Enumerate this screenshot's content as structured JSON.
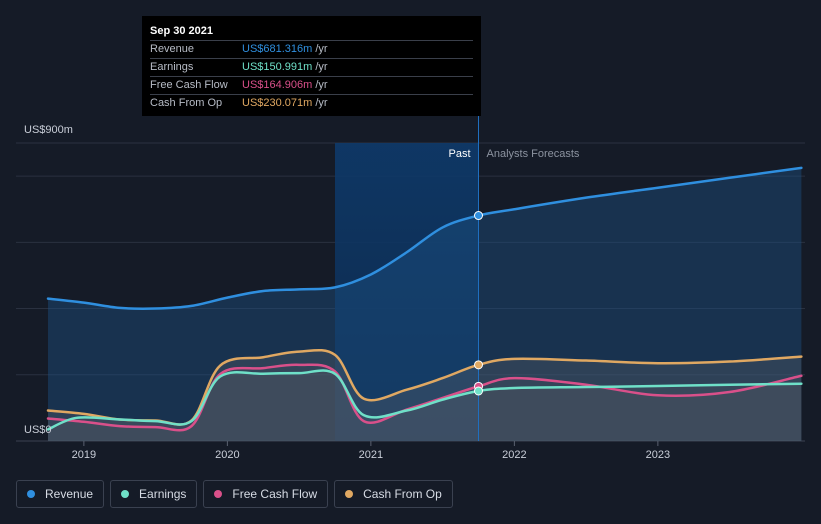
{
  "chart_data": {
    "type": "line",
    "y_axis_labels": [
      "US$900m",
      "US$0"
    ],
    "x_ticks": [
      "2019",
      "2020",
      "2021",
      "2022",
      "2023"
    ],
    "ylim": [
      0,
      900
    ],
    "region_labels": {
      "past": "Past",
      "forecast": "Analysts Forecasts"
    },
    "forecast_start": 2021.75,
    "series": [
      {
        "name": "Revenue",
        "color": "#2f8fdf",
        "x": [
          2018.75,
          2019.0,
          2019.25,
          2019.5,
          2019.75,
          2020.0,
          2020.25,
          2020.5,
          2020.75,
          2021.0,
          2021.25,
          2021.5,
          2021.75,
          2022.0,
          2022.5,
          2023.0,
          2023.5,
          2024.0
        ],
        "y": [
          430,
          418,
          402,
          400,
          408,
          433,
          453,
          458,
          464,
          503,
          570,
          645,
          681,
          700,
          735,
          765,
          795,
          825
        ]
      },
      {
        "name": "Earnings",
        "color": "#6fe0c8",
        "x": [
          2018.75,
          2018.95,
          2019.25,
          2019.5,
          2019.75,
          2019.95,
          2020.25,
          2020.5,
          2020.75,
          2020.95,
          2021.25,
          2021.5,
          2021.75,
          2022.0,
          2022.5,
          2023.0,
          2023.5,
          2024.0
        ],
        "y": [
          35,
          70,
          65,
          60,
          60,
          195,
          203,
          205,
          203,
          78,
          92,
          125,
          151,
          160,
          163,
          166,
          170,
          173
        ]
      },
      {
        "name": "Free Cash Flow",
        "color": "#d9508a",
        "x": [
          2018.75,
          2019.0,
          2019.25,
          2019.5,
          2019.75,
          2019.95,
          2020.25,
          2020.5,
          2020.75,
          2020.95,
          2021.25,
          2021.5,
          2021.75,
          2022.0,
          2022.5,
          2023.0,
          2023.5,
          2024.0
        ],
        "y": [
          68,
          58,
          45,
          42,
          45,
          202,
          220,
          230,
          210,
          60,
          95,
          130,
          165,
          190,
          170,
          138,
          148,
          197
        ]
      },
      {
        "name": "Cash From Op",
        "color": "#e0a862",
        "x": [
          2018.75,
          2019.0,
          2019.25,
          2019.5,
          2019.75,
          2019.95,
          2020.25,
          2020.5,
          2020.75,
          2020.95,
          2021.25,
          2021.5,
          2021.75,
          2022.0,
          2022.5,
          2023.0,
          2023.5,
          2024.0
        ],
        "y": [
          92,
          82,
          65,
          62,
          62,
          228,
          253,
          270,
          260,
          128,
          155,
          190,
          230,
          248,
          243,
          235,
          240,
          255
        ]
      }
    ]
  },
  "tooltip": {
    "date": "Sep 30 2021",
    "unit": "/yr",
    "rows": [
      {
        "label": "Revenue",
        "value": "US$681.316m",
        "color": "#2f8fdf"
      },
      {
        "label": "Earnings",
        "value": "US$150.991m",
        "color": "#6fe0c8"
      },
      {
        "label": "Free Cash Flow",
        "value": "US$164.906m",
        "color": "#d9508a"
      },
      {
        "label": "Cash From Op",
        "value": "US$230.071m",
        "color": "#e0a862"
      }
    ]
  },
  "legend": [
    {
      "label": "Revenue",
      "color": "#2f8fdf"
    },
    {
      "label": "Earnings",
      "color": "#6fe0c8"
    },
    {
      "label": "Free Cash Flow",
      "color": "#d9508a"
    },
    {
      "label": "Cash From Op",
      "color": "#e0a862"
    }
  ]
}
